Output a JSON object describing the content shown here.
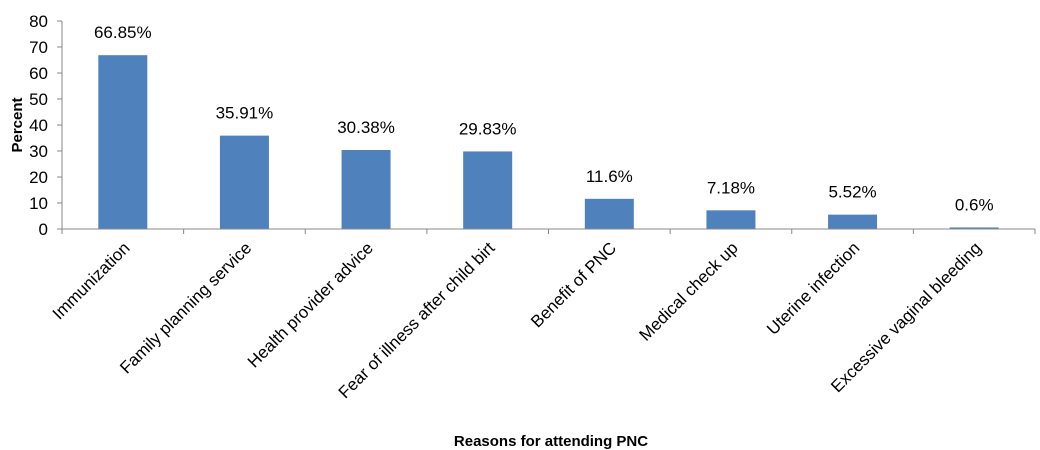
{
  "chart_data": {
    "type": "bar",
    "categories": [
      "Immunization",
      "Family planning service",
      "Health provider advice",
      "Fear of illness after child birt",
      "Benefit of PNC",
      "Medical check up",
      "Uterine infection",
      "Excessive vaginal bleeding"
    ],
    "values": [
      66.85,
      35.91,
      30.38,
      29.83,
      11.6,
      7.18,
      5.52,
      0.6
    ],
    "data_labels": [
      "66.85%",
      "35.91%",
      "30.38%",
      "29.83%",
      "11.6%",
      "7.18%",
      "5.52%",
      "0.6%"
    ],
    "title": "",
    "xlabel": "Reasons for attending PNC",
    "ylabel": "Percent",
    "ylim": [
      0,
      80
    ],
    "yticks": [
      0,
      10,
      20,
      30,
      40,
      50,
      60,
      70,
      80
    ],
    "grid": false,
    "legend": "none",
    "bar_color": "#4f81bd"
  }
}
